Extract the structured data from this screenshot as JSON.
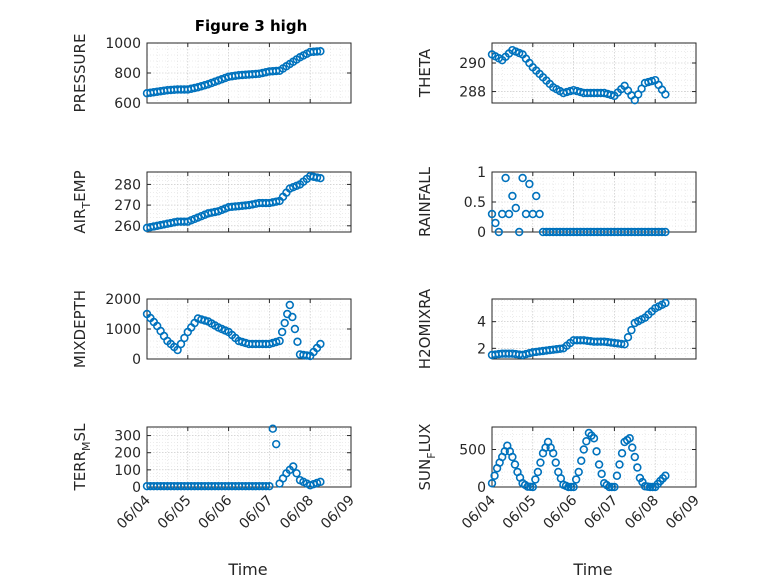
{
  "figure": {
    "title": "Figure 3 high",
    "marker_color": "#0072BD"
  },
  "chart_data": [
    {
      "type": "scatter",
      "id": "pressure",
      "title": "Figure 3 high",
      "ylabel": "PRESSURE",
      "ylim": [
        600,
        1000
      ],
      "yticks": [
        600,
        800,
        1000
      ],
      "xlim": [
        "06/04",
        "06/09"
      ],
      "xticks": [],
      "xlabel": "",
      "x": [
        "06/04 00:00",
        "06/04 06:00",
        "06/04 12:00",
        "06/04 18:00",
        "06/05 00:00",
        "06/05 06:00",
        "06/05 12:00",
        "06/05 18:00",
        "06/06 00:00",
        "06/06 06:00",
        "06/06 12:00",
        "06/06 18:00",
        "06/07 00:00",
        "06/07 06:00",
        "06/07 12:00",
        "06/07 18:00",
        "06/08 00:00",
        "06/08 06:00"
      ],
      "y": [
        665,
        675,
        685,
        690,
        690,
        705,
        725,
        750,
        775,
        785,
        790,
        795,
        810,
        815,
        860,
        905,
        940,
        945
      ]
    },
    {
      "type": "scatter",
      "id": "theta",
      "ylabel": "THETA",
      "ylim": [
        287.2,
        291.4
      ],
      "yticks": [
        288,
        290
      ],
      "xlim": [
        "06/04",
        "06/09"
      ],
      "xticks": [],
      "xlabel": "",
      "x": [
        "06/04 00:00",
        "06/04 06:00",
        "06/04 12:00",
        "06/04 18:00",
        "06/05 00:00",
        "06/05 06:00",
        "06/05 12:00",
        "06/05 18:00",
        "06/06 00:00",
        "06/06 06:00",
        "06/06 12:00",
        "06/06 18:00",
        "06/07 00:00",
        "06/07 06:00",
        "06/07 12:00",
        "06/07 18:00",
        "06/08 00:00",
        "06/08 06:00"
      ],
      "y": [
        290.6,
        290.2,
        290.9,
        290.6,
        289.7,
        289.0,
        288.3,
        287.9,
        288.1,
        287.9,
        287.9,
        287.9,
        287.7,
        288.4,
        287.4,
        288.6,
        288.8,
        287.8
      ]
    },
    {
      "type": "scatter",
      "id": "air_temp",
      "ylabel": "AIR_TEMP",
      "ylim": [
        257,
        286
      ],
      "yticks": [
        260,
        270,
        280
      ],
      "xlim": [
        "06/04",
        "06/09"
      ],
      "xticks": [],
      "xlabel": "",
      "x": [
        "06/04 00:00",
        "06/04 06:00",
        "06/04 12:00",
        "06/04 18:00",
        "06/05 00:00",
        "06/05 06:00",
        "06/05 12:00",
        "06/05 18:00",
        "06/06 00:00",
        "06/06 06:00",
        "06/06 12:00",
        "06/06 18:00",
        "06/07 00:00",
        "06/07 06:00",
        "06/07 12:00",
        "06/07 18:00",
        "06/08 00:00",
        "06/08 06:00"
      ],
      "y": [
        259,
        260,
        261,
        262,
        262,
        264,
        266,
        267,
        269,
        269.5,
        270,
        271,
        271,
        272,
        278,
        280,
        284,
        283
      ]
    },
    {
      "type": "scatter",
      "id": "rainfall",
      "ylabel": "RAINFALL",
      "ylim": [
        0,
        1
      ],
      "yticks": [
        0,
        0.5,
        1
      ],
      "xlim": [
        "06/04",
        "06/09"
      ],
      "xticks": [],
      "xlabel": "",
      "x": [
        "06/04 00:00",
        "06/04 04:00",
        "06/04 06:00",
        "06/04 08:00",
        "06/04 10:00",
        "06/04 12:00",
        "06/04 14:00",
        "06/04 16:00",
        "06/04 18:00",
        "06/04 20:00",
        "06/04 22:00",
        "06/05 00:00",
        "06/05 02:00",
        "06/05 04:00",
        "06/05 06:00",
        "06/05 12:00",
        "06/05 18:00",
        "06/06 00:00",
        "06/06 12:00",
        "06/07 00:00",
        "06/07 12:00",
        "06/08 00:00",
        "06/08 06:00"
      ],
      "y": [
        0.3,
        0,
        0.3,
        0.9,
        0.3,
        0.6,
        0.4,
        0,
        0.9,
        0.3,
        0.8,
        0.3,
        0.6,
        0.3,
        0,
        0,
        0,
        0,
        0,
        0,
        0,
        0,
        0
      ]
    },
    {
      "type": "scatter",
      "id": "mixdepth",
      "ylabel": "MIXDEPTH",
      "ylim": [
        0,
        2000
      ],
      "yticks": [
        0,
        1000,
        2000
      ],
      "xlim": [
        "06/04",
        "06/09"
      ],
      "xticks": [],
      "xlabel": "",
      "x": [
        "06/04 00:00",
        "06/04 06:00",
        "06/04 12:00",
        "06/04 18:00",
        "06/05 00:00",
        "06/05 06:00",
        "06/05 12:00",
        "06/05 18:00",
        "06/06 00:00",
        "06/06 06:00",
        "06/06 12:00",
        "06/06 18:00",
        "06/07 00:00",
        "06/07 06:00",
        "06/07 09:00",
        "06/07 12:00",
        "06/07 15:00",
        "06/07 18:00",
        "06/08 00:00",
        "06/08 06:00"
      ],
      "y": [
        1500,
        1100,
        600,
        300,
        900,
        1350,
        1250,
        1050,
        900,
        600,
        500,
        500,
        500,
        600,
        1200,
        1800,
        1000,
        150,
        100,
        500
      ]
    },
    {
      "type": "scatter",
      "id": "h2omixra",
      "ylabel": "H2OMIXRA",
      "ylim": [
        1.2,
        5.7
      ],
      "yticks": [
        2,
        4
      ],
      "xlim": [
        "06/04",
        "06/09"
      ],
      "xticks": [],
      "xlabel": "",
      "x": [
        "06/04 00:00",
        "06/04 06:00",
        "06/04 12:00",
        "06/04 18:00",
        "06/05 00:00",
        "06/05 06:00",
        "06/05 12:00",
        "06/05 18:00",
        "06/06 00:00",
        "06/06 06:00",
        "06/06 12:00",
        "06/06 18:00",
        "06/07 00:00",
        "06/07 06:00",
        "06/07 12:00",
        "06/07 18:00",
        "06/08 00:00",
        "06/08 06:00"
      ],
      "y": [
        1.5,
        1.6,
        1.6,
        1.5,
        1.7,
        1.8,
        1.9,
        2.0,
        2.6,
        2.6,
        2.5,
        2.5,
        2.4,
        2.3,
        3.9,
        4.3,
        5.0,
        5.4
      ]
    },
    {
      "type": "scatter",
      "id": "terr_msl",
      "ylabel": "TERR_MSL",
      "ylim": [
        0,
        350
      ],
      "yticks": [
        0,
        100,
        200,
        300
      ],
      "xlim": [
        "06/04",
        "06/09"
      ],
      "xticks": [
        "06/04",
        "06/05",
        "06/06",
        "06/07",
        "06/08",
        "06/09"
      ],
      "xlabel": "Time",
      "x": [
        "06/04 00:00",
        "06/04 12:00",
        "06/05 00:00",
        "06/05 12:00",
        "06/06 00:00",
        "06/06 12:00",
        "06/07 00:00",
        "06/07 02:00",
        "06/07 04:00",
        "06/07 06:00",
        "06/07 10:00",
        "06/07 14:00",
        "06/07 18:00",
        "06/08 00:00",
        "06/08 06:00"
      ],
      "y": [
        5,
        5,
        5,
        5,
        5,
        5,
        5,
        340,
        250,
        20,
        80,
        120,
        40,
        10,
        30
      ]
    },
    {
      "type": "scatter",
      "id": "sun_flux",
      "ylabel": "SUN_FLUX",
      "ylim": [
        0,
        800
      ],
      "yticks": [
        0,
        500
      ],
      "xlim": [
        "06/04",
        "06/09"
      ],
      "xticks": [
        "06/04",
        "06/05",
        "06/06",
        "06/07",
        "06/08",
        "06/09"
      ],
      "xlabel": "Time",
      "x": [
        "06/04 00:00",
        "06/04 03:00",
        "06/04 06:00",
        "06/04 09:00",
        "06/04 12:00",
        "06/04 15:00",
        "06/04 18:00",
        "06/04 21:00",
        "06/05 00:00",
        "06/05 03:00",
        "06/05 06:00",
        "06/05 09:00",
        "06/05 12:00",
        "06/05 15:00",
        "06/05 18:00",
        "06/05 21:00",
        "06/06 00:00",
        "06/06 03:00",
        "06/06 06:00",
        "06/06 09:00",
        "06/06 12:00",
        "06/06 15:00",
        "06/06 18:00",
        "06/06 21:00",
        "06/07 00:00",
        "06/07 03:00",
        "06/07 06:00",
        "06/07 09:00",
        "06/07 12:00",
        "06/07 15:00",
        "06/07 18:00",
        "06/07 21:00",
        "06/08 00:00",
        "06/08 03:00",
        "06/08 06:00"
      ],
      "y": [
        50,
        250,
        400,
        550,
        400,
        200,
        50,
        5,
        0,
        200,
        450,
        600,
        450,
        200,
        30,
        0,
        0,
        200,
        500,
        720,
        650,
        300,
        50,
        0,
        0,
        300,
        600,
        650,
        400,
        120,
        10,
        0,
        0,
        80,
        150
      ]
    }
  ]
}
